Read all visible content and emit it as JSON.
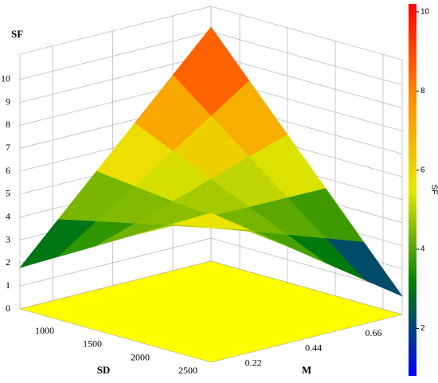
{
  "chart_data": {
    "type": "surface3d",
    "xlabel": "SD",
    "ylabel": "M",
    "zlabel": "SF",
    "colorbar_label": "SF",
    "x": [
      700,
      1100,
      1500,
      1900,
      2300,
      2700
    ],
    "y": [
      0.1,
      0.24,
      0.38,
      0.52,
      0.66,
      0.8
    ],
    "z": [
      [
        1.8,
        2.74,
        3.68,
        4.62,
        5.56,
        6.5
      ],
      [
        3.48,
        3.86,
        4.23,
        4.61,
        4.98,
        5.36
      ],
      [
        5.16,
        4.97,
        4.78,
        4.6,
        4.41,
        4.22
      ],
      [
        6.84,
        6.09,
        5.34,
        4.58,
        3.83,
        3.08
      ],
      [
        8.52,
        7.2,
        5.89,
        4.57,
        3.26,
        1.94
      ],
      [
        10.2,
        8.32,
        6.44,
        4.56,
        2.68,
        0.8
      ]
    ],
    "xlim": [
      700,
      2700
    ],
    "ylim": [
      0.1,
      0.8
    ],
    "zlim": [
      0,
      11.1
    ],
    "xticks": [
      1000,
      1500,
      2000,
      2500
    ],
    "yticks": [
      0.22,
      0.44,
      0.66
    ],
    "zticks": [
      0,
      1,
      2,
      3,
      4,
      5,
      6,
      7,
      8,
      9,
      10
    ],
    "colorbar_lim": [
      0.8,
      10.2
    ],
    "colorbar_ticks": [
      2,
      4,
      6,
      8,
      10
    ],
    "colormap": [
      "#0000ff",
      "#008000",
      "#e8e800",
      "#ff8c00",
      "#ff0000"
    ],
    "floor_color": "#ffff00",
    "grid": true
  }
}
